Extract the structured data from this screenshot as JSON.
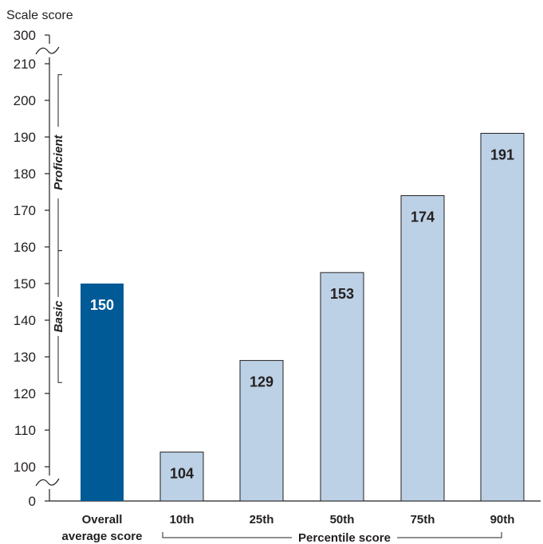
{
  "chart_data": {
    "type": "bar",
    "ylabel": "Scale score",
    "categories": [
      "Overall average score",
      "10th",
      "25th",
      "50th",
      "75th",
      "90th"
    ],
    "category_lines": [
      [
        "Overall",
        "average score"
      ],
      [
        "10th"
      ],
      [
        "25th"
      ],
      [
        "50th"
      ],
      [
        "75th"
      ],
      [
        "90th"
      ]
    ],
    "values": [
      150,
      104,
      129,
      153,
      174,
      191
    ],
    "data_labels": [
      "150",
      "104",
      "129",
      "153",
      "174",
      "191"
    ],
    "highlight_index": 0,
    "y_ticks": [
      0,
      100,
      110,
      120,
      130,
      140,
      150,
      160,
      170,
      180,
      190,
      200,
      210,
      300
    ],
    "y_tick_labels": [
      "0",
      "100",
      "110",
      "120",
      "130",
      "140",
      "150",
      "160",
      "170",
      "180",
      "190",
      "200",
      "210",
      "300"
    ],
    "y_axis_breaks": "between 0 and 100, and between 210 and 300",
    "ranges": [
      {
        "label": "Proficient",
        "from": 159,
        "to": 207
      },
      {
        "label": "Basic",
        "from": 123,
        "to": 159
      }
    ],
    "group_label": "Percentile score",
    "grid": false,
    "colors": {
      "highlight": "#005a96",
      "bar": "#bcd1e5",
      "highlight_text": "#ffffff",
      "text": "#231f20"
    }
  }
}
